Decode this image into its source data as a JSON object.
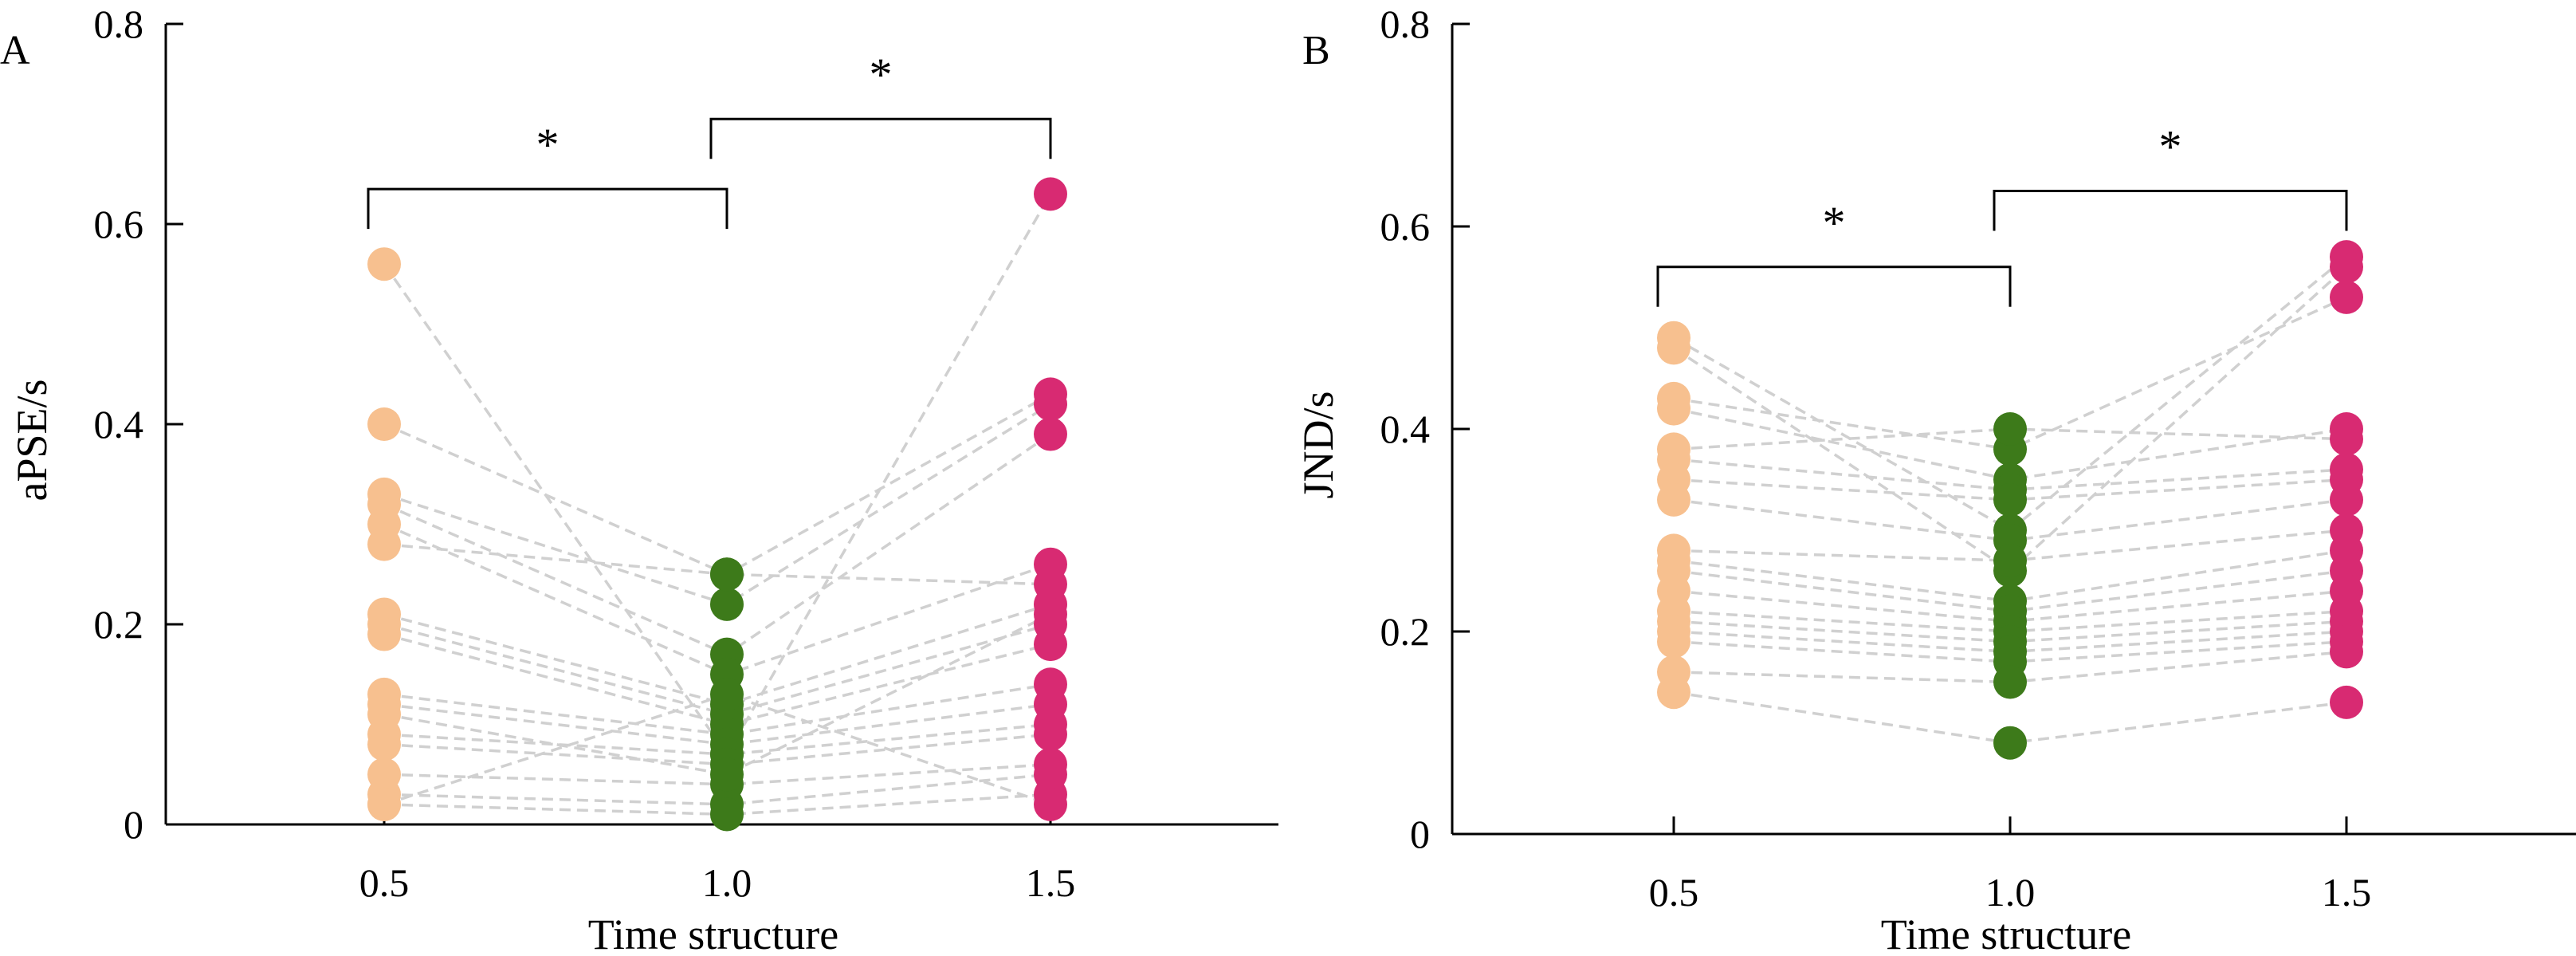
{
  "chart_data": [
    {
      "type": "scatter",
      "panel_letter": "A",
      "ylabel": "aPSE/s",
      "xlabel": "Time structure",
      "categories": [
        "0.5",
        "1.0",
        "1.5"
      ],
      "ylim": [
        0,
        0.8
      ],
      "yticks": [
        0,
        0.2,
        0.4,
        0.6,
        0.8
      ],
      "ytick_labels": [
        "0",
        "0.2",
        "0.4",
        "0.6",
        "0.8"
      ],
      "colors": [
        "#f7c08f",
        "#3d7a1a",
        "#d82a72"
      ],
      "line_color": "#d0d0d0",
      "subjects": [
        [
          0.56,
          0.07,
          0.63
        ],
        [
          0.4,
          0.25,
          0.43
        ],
        [
          0.33,
          0.22,
          0.42
        ],
        [
          0.32,
          0.17,
          0.39
        ],
        [
          0.3,
          0.15,
          0.26
        ],
        [
          0.28,
          0.25,
          0.24
        ],
        [
          0.21,
          0.12,
          0.22
        ],
        [
          0.2,
          0.11,
          0.2
        ],
        [
          0.19,
          0.1,
          0.18
        ],
        [
          0.13,
          0.09,
          0.14
        ],
        [
          0.12,
          0.08,
          0.12
        ],
        [
          0.09,
          0.07,
          0.1
        ],
        [
          0.08,
          0.06,
          0.09
        ],
        [
          0.05,
          0.04,
          0.06
        ],
        [
          0.03,
          0.02,
          0.05
        ],
        [
          0.02,
          0.01,
          0.03
        ],
        [
          0.02,
          0.13,
          0.02
        ],
        [
          0.11,
          0.05,
          0.21
        ]
      ],
      "significance": [
        {
          "from": 0,
          "to": 1,
          "y": 0.635,
          "label": "*"
        },
        {
          "from": 1,
          "to": 2,
          "y": 0.705,
          "label": "*"
        }
      ]
    },
    {
      "type": "scatter",
      "panel_letter": "B",
      "ylabel": "JND/s",
      "xlabel": "Time structure",
      "categories": [
        "0.5",
        "1.0",
        "1.5"
      ],
      "ylim": [
        0,
        0.8
      ],
      "yticks": [
        0,
        0.2,
        0.4,
        0.6,
        0.8
      ],
      "ytick_labels": [
        "0",
        "0.2",
        "0.4",
        "0.6",
        "0.8"
      ],
      "colors": [
        "#f7c08f",
        "#3d7a1a",
        "#d82a72"
      ],
      "line_color": "#d0d0d0",
      "subjects": [
        [
          0.49,
          0.3,
          0.57
        ],
        [
          0.48,
          0.26,
          0.56
        ],
        [
          0.43,
          0.38,
          0.53
        ],
        [
          0.42,
          0.35,
          0.4
        ],
        [
          0.38,
          0.4,
          0.39
        ],
        [
          0.37,
          0.34,
          0.36
        ],
        [
          0.35,
          0.33,
          0.35
        ],
        [
          0.33,
          0.29,
          0.33
        ],
        [
          0.28,
          0.27,
          0.3
        ],
        [
          0.27,
          0.23,
          0.28
        ],
        [
          0.26,
          0.22,
          0.26
        ],
        [
          0.24,
          0.21,
          0.24
        ],
        [
          0.22,
          0.2,
          0.22
        ],
        [
          0.21,
          0.19,
          0.21
        ],
        [
          0.2,
          0.18,
          0.2
        ],
        [
          0.19,
          0.17,
          0.19
        ],
        [
          0.16,
          0.15,
          0.18
        ],
        [
          0.14,
          0.09,
          0.13
        ]
      ],
      "significance": [
        {
          "from": 0,
          "to": 1,
          "y": 0.56,
          "label": "*"
        },
        {
          "from": 1,
          "to": 2,
          "y": 0.635,
          "label": "*"
        }
      ]
    }
  ]
}
